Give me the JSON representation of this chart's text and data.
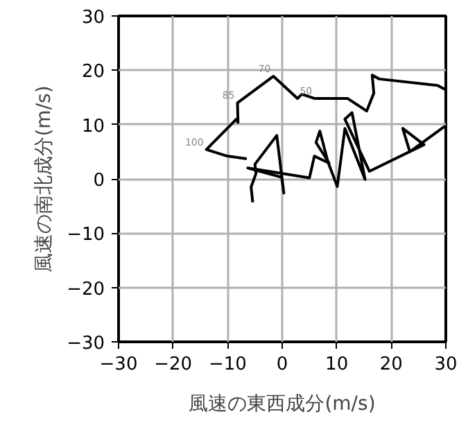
{
  "chart_data": {
    "type": "line",
    "xlabel": "風速の東西成分(m/s)",
    "ylabel": "風速の南北成分(m/s)",
    "x": [
      -5.4,
      -5.7,
      -4.8,
      -5.0,
      -1.0,
      0.3,
      -0.1,
      -6.3,
      5.0,
      5.9,
      8.6,
      6.2,
      6.9,
      8.4,
      10.1,
      11.5,
      15.2,
      12.8,
      11.5,
      16.0,
      26.0,
      22.1,
      23.4,
      29.8,
      null,
      29.8,
      28.5,
      17.8,
      16.5,
      16.8,
      15.5,
      12.0,
      6.0,
      3.6,
      2.8,
      -1.6,
      -8.2,
      -8.1,
      -8.4,
      -13.9,
      -10.1,
      -6.5
    ],
    "series": [
      {
        "color": "#000000",
        "values": [
          -4.3,
          -1.5,
          1.0,
          2.7,
          8.0,
          -2.6,
          0.3,
          2.0,
          0.2,
          4.2,
          2.9,
          6.7,
          8.8,
          3.1,
          -1.4,
          9.3,
          -0.1,
          12.2,
          11.0,
          1.4,
          6.3,
          9.3,
          5.0,
          9.7,
          null,
          16.5,
          17.2,
          18.4,
          19.1,
          15.8,
          12.5,
          14.8,
          14.8,
          15.6,
          14.8,
          18.9,
          14.0,
          10.4,
          11.0,
          5.4,
          4.2,
          3.7
        ]
      }
    ],
    "xlim": [
      -30,
      30
    ],
    "ylim": [
      -30,
      30
    ],
    "xticks": [
      -30,
      -20,
      -10,
      0,
      10,
      20,
      30
    ],
    "yticks": [
      -30,
      -20,
      -10,
      0,
      10,
      20,
      30
    ],
    "grid": true,
    "marker": "none",
    "line_style": "solid",
    "annotations": [
      {
        "text": "100",
        "x": -13.9,
        "y": 5.4
      },
      {
        "text": "85",
        "x": -8.2,
        "y": 14.0
      },
      {
        "text": "70",
        "x": -1.6,
        "y": 18.9
      },
      {
        "text": "50",
        "x": 6.0,
        "y": 14.8
      }
    ]
  }
}
